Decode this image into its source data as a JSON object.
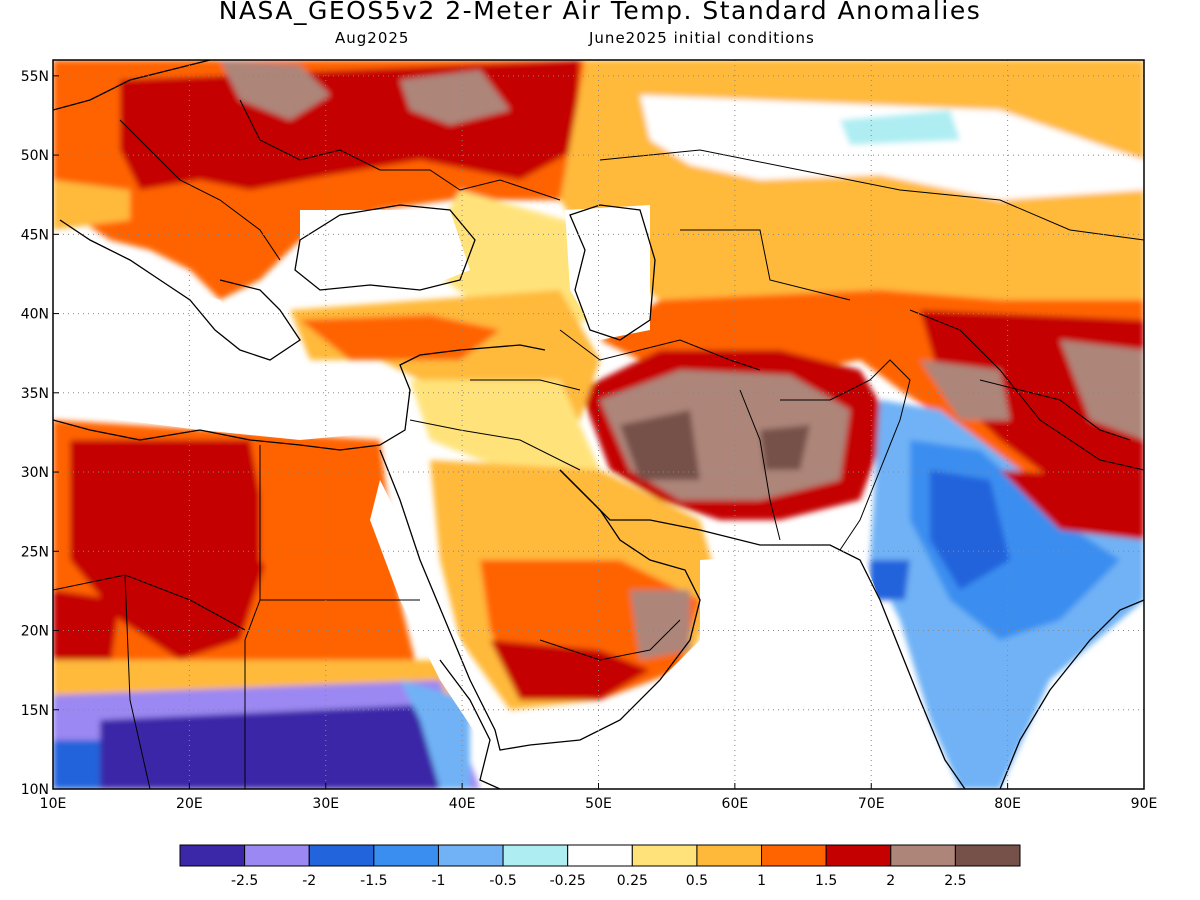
{
  "title": "NASA_GEOS5v2 2-Meter Air Temp. Standard Anomalies",
  "valid_month": "Aug2025",
  "initial_conditions": "June2025 initial conditions",
  "map": {
    "projection": "lat-lon",
    "lon_range": [
      10,
      90
    ],
    "lat_range": [
      10,
      56
    ],
    "grid": "dotted",
    "lat_labels": [
      "10N",
      "15N",
      "20N",
      "25N",
      "30N",
      "35N",
      "40N",
      "45N",
      "50N",
      "55N"
    ],
    "lon_labels": [
      "10E",
      "20E",
      "30E",
      "40E",
      "50E",
      "60E",
      "70E",
      "80E",
      "90E"
    ]
  },
  "colorbar": {
    "colors": [
      "#3b28a8",
      "#9c88f2",
      "#2264dc",
      "#3a8ef0",
      "#70b2f5",
      "#aeeef3",
      "#ffffff",
      "#ffe37a",
      "#ffb93a",
      "#ff6400",
      "#c40000",
      "#ad8579",
      "#76514a"
    ],
    "labels": [
      "-2.5",
      "-2",
      "-1.5",
      "-1",
      "-0.5",
      "-0.25",
      "0.25",
      "0.5",
      "1",
      "1.5",
      "2",
      "2.5"
    ]
  }
}
